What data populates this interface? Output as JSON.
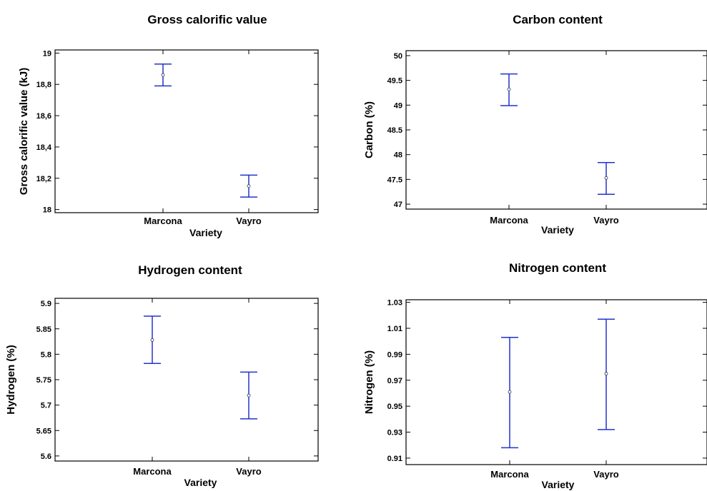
{
  "chart_data": [
    {
      "type": "errorbar",
      "title": "Gross calorific value",
      "xlabel": "Variety",
      "ylabel": "Gross calorific value (kJ)",
      "categories": [
        "Marcona",
        "Vayro"
      ],
      "mean": [
        18.86,
        18.15
      ],
      "lower": [
        18.79,
        18.08
      ],
      "upper": [
        18.93,
        18.22
      ],
      "ylim": [
        17.98,
        19.02
      ],
      "yticks": [
        18,
        18.2,
        18.4,
        18.6,
        18.8,
        19
      ],
      "ytick_labels": [
        "18",
        "18,2",
        "18,4",
        "18,6",
        "18,8",
        "19"
      ],
      "grid": false,
      "legend": "none"
    },
    {
      "type": "errorbar",
      "title": "Carbon content",
      "xlabel": "Variety",
      "ylabel": "Carbon (%)",
      "categories": [
        "Marcona",
        "Vayro"
      ],
      "mean": [
        49.32,
        47.53
      ],
      "lower": [
        48.99,
        47.2
      ],
      "upper": [
        49.63,
        47.84
      ],
      "ylim": [
        46.9,
        50.1
      ],
      "yticks": [
        47,
        47.5,
        48,
        48.5,
        49,
        49.5,
        50
      ],
      "ytick_labels": [
        "47",
        "47.5",
        "48",
        "48.5",
        "49",
        "49.5",
        "50"
      ],
      "grid": false,
      "legend": "none"
    },
    {
      "type": "errorbar",
      "title": "Hydrogen content",
      "xlabel": "Variety",
      "ylabel": "Hydrogen (%)",
      "categories": [
        "Marcona",
        "Vayro"
      ],
      "mean": [
        5.828,
        5.719
      ],
      "lower": [
        5.782,
        5.673
      ],
      "upper": [
        5.875,
        5.765
      ],
      "ylim": [
        5.59,
        5.91
      ],
      "yticks": [
        5.6,
        5.65,
        5.7,
        5.75,
        5.8,
        5.85,
        5.9
      ],
      "ytick_labels": [
        "5.6",
        "5.65",
        "5.7",
        "5.75",
        "5.8",
        "5.85",
        "5.9"
      ],
      "grid": false,
      "legend": "none"
    },
    {
      "type": "errorbar",
      "title": "Nitrogen content",
      "xlabel": "Variety",
      "ylabel": "Nitrogen (%)",
      "categories": [
        "Marcona",
        "Vayro"
      ],
      "mean": [
        0.961,
        0.975
      ],
      "lower": [
        0.918,
        0.932
      ],
      "upper": [
        1.003,
        1.017
      ],
      "ylim": [
        0.905,
        1.032
      ],
      "yticks": [
        0.91,
        0.93,
        0.95,
        0.97,
        0.99,
        1.01,
        1.03
      ],
      "ytick_labels": [
        "0.91",
        "0.93",
        "0.95",
        "0.97",
        "0.99",
        "1.01",
        "1.03"
      ],
      "grid": false,
      "legend": "none"
    }
  ],
  "colors": {
    "errorbar": "#2233cc",
    "frame": "#000000"
  }
}
